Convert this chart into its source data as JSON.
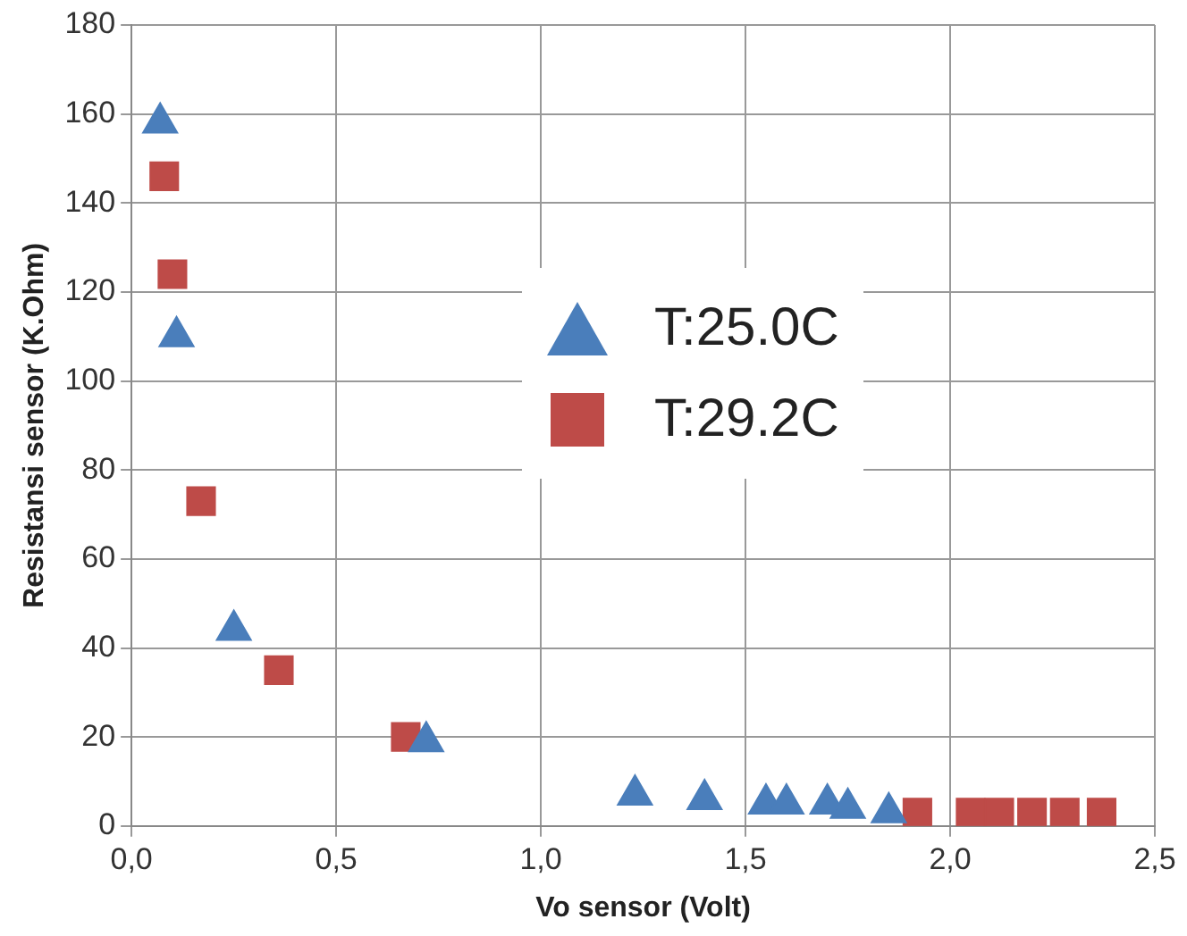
{
  "chart_data": {
    "type": "scatter",
    "xlabel": "Vo sensor (Volt)",
    "ylabel": "Resistansi sensor (K.Ohm)",
    "xlim": [
      0,
      2.5
    ],
    "xticks": [
      {
        "value": 0,
        "label": "0,0"
      },
      {
        "value": 0.5,
        "label": "0,5"
      },
      {
        "value": 1,
        "label": "1,0"
      },
      {
        "value": 1.5,
        "label": "1,5"
      },
      {
        "value": 2,
        "label": "2,0"
      },
      {
        "value": 2.5,
        "label": "2,5"
      }
    ],
    "ylim": [
      0,
      180
    ],
    "yticks": [
      0,
      20,
      40,
      60,
      80,
      100,
      120,
      140,
      160,
      180
    ],
    "grid": true,
    "legend": "top right",
    "series": [
      {
        "name": "T:25.0C",
        "color": "#4a7ebb",
        "marker": "triangle",
        "x": [
          0.07,
          0.11,
          0.25,
          0.72,
          1.23,
          1.4,
          1.55,
          1.6,
          1.7,
          1.75,
          1.85
        ],
        "values": [
          158,
          110,
          44,
          19,
          7,
          6,
          5,
          5,
          5,
          4,
          3
        ]
      },
      {
        "name": "T:29.2C",
        "color": "#be4b48",
        "marker": "square",
        "x": [
          0.08,
          0.1,
          0.17,
          0.36,
          0.67,
          1.92,
          2.05,
          2.12,
          2.2,
          2.28,
          2.37
        ],
        "values": [
          146,
          124,
          73,
          35,
          20,
          3,
          3,
          3,
          3,
          3,
          3
        ]
      }
    ]
  }
}
